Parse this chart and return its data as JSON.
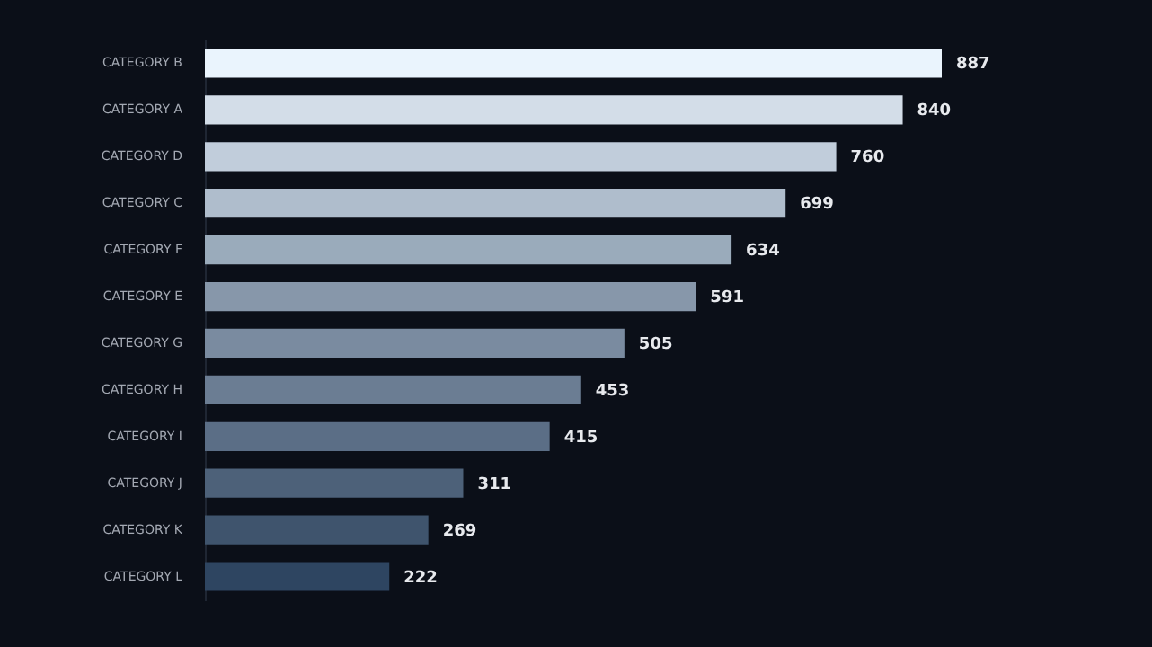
{
  "chart_data": {
    "type": "bar",
    "orientation": "horizontal",
    "data_labels": true,
    "categories": [
      "CATEGORY B",
      "CATEGORY A",
      "CATEGORY D",
      "CATEGORY C",
      "CATEGORY F",
      "CATEGORY E",
      "CATEGORY G",
      "CATEGORY H",
      "CATEGORY I",
      "CATEGORY J",
      "CATEGORY K",
      "CATEGORY L"
    ],
    "values": [
      887,
      840,
      760,
      699,
      634,
      591,
      505,
      453,
      415,
      311,
      269,
      222
    ],
    "colors": [
      "#eaf4fd",
      "#d3dde8",
      "#c1cddb",
      "#afbdcc",
      "#9aabbb",
      "#8797aa",
      "#7a8ba0",
      "#6b7d93",
      "#5b6e86",
      "#4d6179",
      "#3f546d",
      "#2e4561"
    ]
  }
}
